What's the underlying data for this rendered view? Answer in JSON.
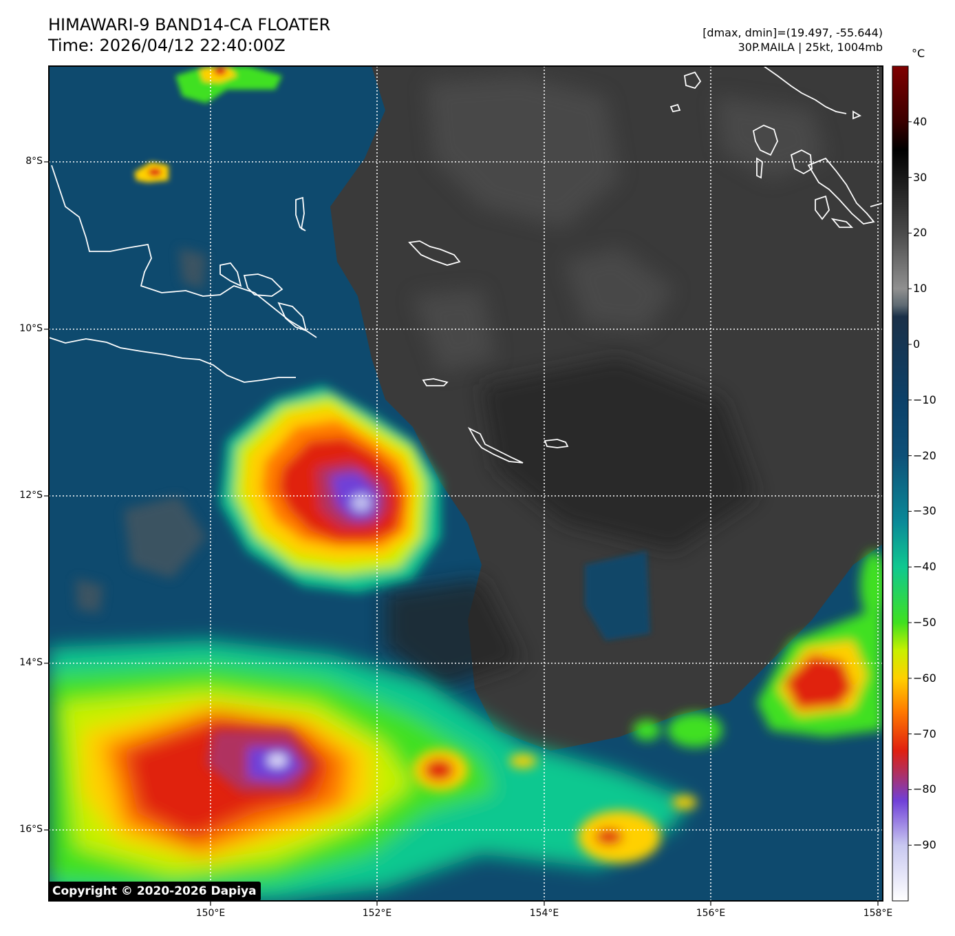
{
  "header": {
    "title": "HIMAWARI-9 BAND14-CA FLOATER",
    "time": "Time: 2026/04/12 22:40:00Z",
    "range": "[dmax, dmin]=(19.497, -55.644)",
    "storm": "30P.MAILA | 25kt, 1004mb"
  },
  "colorbar": {
    "unit": "°C",
    "min": -100,
    "max": 50,
    "ticks": [
      "40",
      "30",
      "20",
      "10",
      "0",
      "−10",
      "−20",
      "−30",
      "−40",
      "−50",
      "−60",
      "−70",
      "−80",
      "−90"
    ],
    "tick_values": [
      40,
      30,
      20,
      10,
      0,
      -10,
      -20,
      -30,
      -40,
      -50,
      -60,
      -70,
      -80,
      -90
    ],
    "stops": [
      {
        "v": -100,
        "c": "#ffffff"
      },
      {
        "v": -90,
        "c": "#c8c8f0"
      },
      {
        "v": -82,
        "c": "#7040d8"
      },
      {
        "v": -77,
        "c": "#b03060"
      },
      {
        "v": -73,
        "c": "#e02010"
      },
      {
        "v": -66,
        "c": "#ff7a00"
      },
      {
        "v": -60,
        "c": "#ffd000"
      },
      {
        "v": -55,
        "c": "#c8f000"
      },
      {
        "v": -50,
        "c": "#40e020"
      },
      {
        "v": -40,
        "c": "#10c890"
      },
      {
        "v": -32,
        "c": "#0a8a98"
      },
      {
        "v": -20,
        "c": "#0e5078"
      },
      {
        "v": -10,
        "c": "#0c4068"
      },
      {
        "v": 5,
        "c": "#1a3048"
      },
      {
        "v": 7,
        "c": "#5e6a72"
      },
      {
        "v": 10,
        "c": "#909090"
      },
      {
        "v": 20,
        "c": "#4a4a4a"
      },
      {
        "v": 35,
        "c": "#000000"
      },
      {
        "v": 40,
        "c": "#3a0000"
      },
      {
        "v": 50,
        "c": "#800000"
      }
    ]
  },
  "map": {
    "lon_range": [
      148.0,
      158.0
    ],
    "lat_range": [
      -16.85,
      -6.85
    ],
    "lat_labels": [
      "8°S",
      "10°S",
      "12°S",
      "14°S",
      "16°S"
    ],
    "lat_values": [
      -8,
      -10,
      -12,
      -14,
      -16
    ],
    "lon_labels": [
      "150°E",
      "152°E",
      "154°E",
      "156°E",
      "158°E"
    ],
    "lon_values": [
      150,
      152,
      154,
      156,
      158
    ],
    "colors": {
      "ocean_blue": "#0e4a6e",
      "clear_grey": "#3a3a3a",
      "coast": "#ffffff",
      "grid": "#ffffff"
    }
  },
  "copyright": "Copyright © 2020-2026 Dapiya"
}
